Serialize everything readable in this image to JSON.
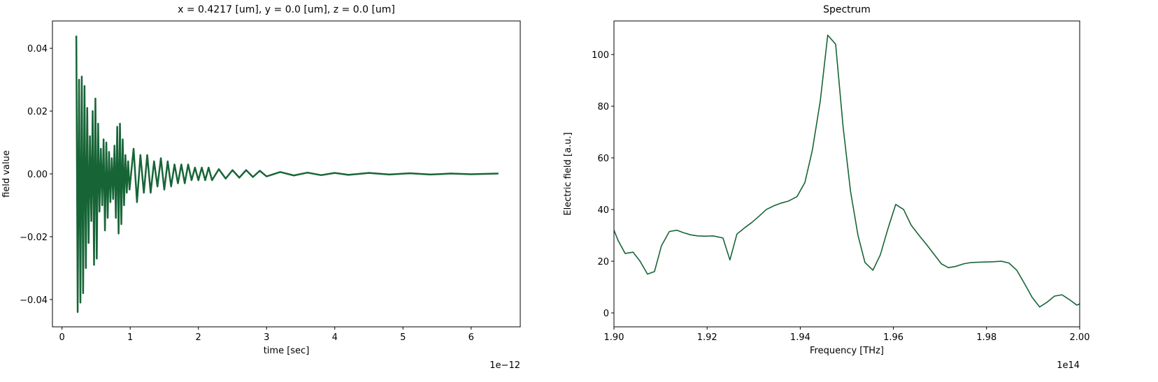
{
  "chart_data": [
    {
      "type": "line",
      "title": "x = 0.4217 [um], y = 0.0 [um], z = 0.0 [um]",
      "x_label": "time [sec]",
      "y_label": "field value",
      "x_offset_label": "1e−12",
      "color": "#176537",
      "line_width": 2.5,
      "xlim": [
        -0.14,
        6.72
      ],
      "ylim": [
        -0.0487,
        0.0487
      ],
      "xticks": [
        0,
        1,
        2,
        3,
        4,
        5,
        6
      ],
      "yticks": [
        {
          "value": -0.04,
          "label": "−0.04"
        },
        {
          "value": -0.02,
          "label": "−0.02"
        },
        {
          "value": 0,
          "label": "0.00"
        },
        0.02,
        0.04
      ],
      "x": [
        0.21,
        0.23,
        0.25,
        0.27,
        0.29,
        0.31,
        0.33,
        0.35,
        0.37,
        0.39,
        0.41,
        0.43,
        0.45,
        0.47,
        0.49,
        0.51,
        0.53,
        0.55,
        0.57,
        0.59,
        0.61,
        0.63,
        0.65,
        0.67,
        0.69,
        0.71,
        0.73,
        0.75,
        0.77,
        0.79,
        0.81,
        0.83,
        0.85,
        0.87,
        0.89,
        0.91,
        0.93,
        0.95,
        0.97,
        0.99,
        1.05,
        1.1,
        1.15,
        1.2,
        1.25,
        1.3,
        1.35,
        1.4,
        1.45,
        1.5,
        1.55,
        1.6,
        1.65,
        1.7,
        1.75,
        1.8,
        1.85,
        1.9,
        1.95,
        2.0,
        2.05,
        2.1,
        2.15,
        2.2,
        2.3,
        2.4,
        2.5,
        2.6,
        2.7,
        2.8,
        2.9,
        3.0,
        3.2,
        3.4,
        3.6,
        3.8,
        4.0,
        4.2,
        4.5,
        4.8,
        5.1,
        5.4,
        5.7,
        6.0,
        6.4
      ],
      "values": [
        0.044,
        -0.044,
        0.03,
        -0.041,
        0.031,
        -0.038,
        0.028,
        -0.03,
        0.021,
        -0.022,
        0.012,
        -0.015,
        0.02,
        -0.029,
        0.024,
        -0.027,
        0.016,
        -0.012,
        0.008,
        -0.01,
        0.011,
        -0.018,
        0.01,
        -0.014,
        0.007,
        -0.009,
        0.005,
        -0.008,
        0.009,
        -0.014,
        0.015,
        -0.019,
        0.016,
        -0.016,
        0.011,
        -0.01,
        0.006,
        -0.006,
        0.004,
        -0.005,
        0.008,
        -0.009,
        0.006,
        -0.006,
        0.006,
        -0.006,
        0.004,
        -0.004,
        0.005,
        -0.005,
        0.004,
        -0.004,
        0.003,
        -0.003,
        0.003,
        -0.003,
        0.003,
        -0.002,
        0.002,
        -0.002,
        0.002,
        -0.002,
        0.002,
        -0.002,
        0.0015,
        -0.0015,
        0.0012,
        -0.0012,
        0.0012,
        -0.001,
        0.001,
        -0.0008,
        0.0006,
        -0.0005,
        0.0004,
        -0.0004,
        0.0003,
        -0.0003,
        0.0003,
        -0.0002,
        0.0002,
        -0.0002,
        0.0001,
        -0.0001,
        0.0001
      ]
    },
    {
      "type": "line",
      "title": "Spectrum",
      "x_label": "Frequency [THz]",
      "y_label": "Electric field [a.u.]",
      "x_offset_label": "1e14",
      "color": "#176537",
      "line_width": 1.6,
      "xlim": [
        1.9,
        2.0
      ],
      "ylim": [
        -5.4,
        113
      ],
      "xticks": [
        {
          "value": 1.9,
          "label": "1.90"
        },
        1.92,
        1.94,
        1.96,
        1.98,
        {
          "value": 2.0,
          "label": "2.00"
        }
      ],
      "yticks": [
        0,
        20,
        40,
        60,
        80,
        100
      ],
      "x": [
        1.9,
        1.9009,
        1.9024,
        1.9041,
        1.9056,
        1.9072,
        1.9087,
        1.9102,
        1.9119,
        1.9135,
        1.915,
        1.9165,
        1.918,
        1.9197,
        1.9213,
        1.9234,
        1.9249,
        1.9264,
        1.9281,
        1.9296,
        1.9312,
        1.9327,
        1.9344,
        1.9359,
        1.9375,
        1.9393,
        1.941,
        1.9426,
        1.9443,
        1.9459,
        1.9476,
        1.9492,
        1.9508,
        1.9524,
        1.9539,
        1.9556,
        1.9572,
        1.9589,
        1.9605,
        1.9622,
        1.9638,
        1.9655,
        1.9671,
        1.9703,
        1.9718,
        1.9734,
        1.9751,
        1.9767,
        1.9814,
        1.9832,
        1.9848,
        1.9865,
        1.9881,
        1.9898,
        1.9914,
        1.9929,
        1.9946,
        1.9962,
        1.9979,
        1.9994,
        2.0
      ],
      "values": [
        32,
        28,
        23,
        23.5,
        20,
        15,
        16,
        26,
        31.5,
        32,
        31,
        30.2,
        29.8,
        29.7,
        29.8,
        29,
        20.5,
        30.5,
        33,
        35,
        37.5,
        40,
        41.5,
        42.5,
        43.3,
        45,
        50.5,
        63,
        82,
        107.5,
        104,
        72,
        47,
        30,
        19.5,
        16.5,
        22.5,
        33,
        42,
        40,
        34,
        30,
        26.5,
        19,
        17.5,
        18,
        19,
        19.5,
        19.8,
        20,
        19.3,
        16.5,
        11.5,
        6,
        2.3,
        4,
        6.5,
        7,
        5,
        3,
        3.5
      ]
    }
  ]
}
